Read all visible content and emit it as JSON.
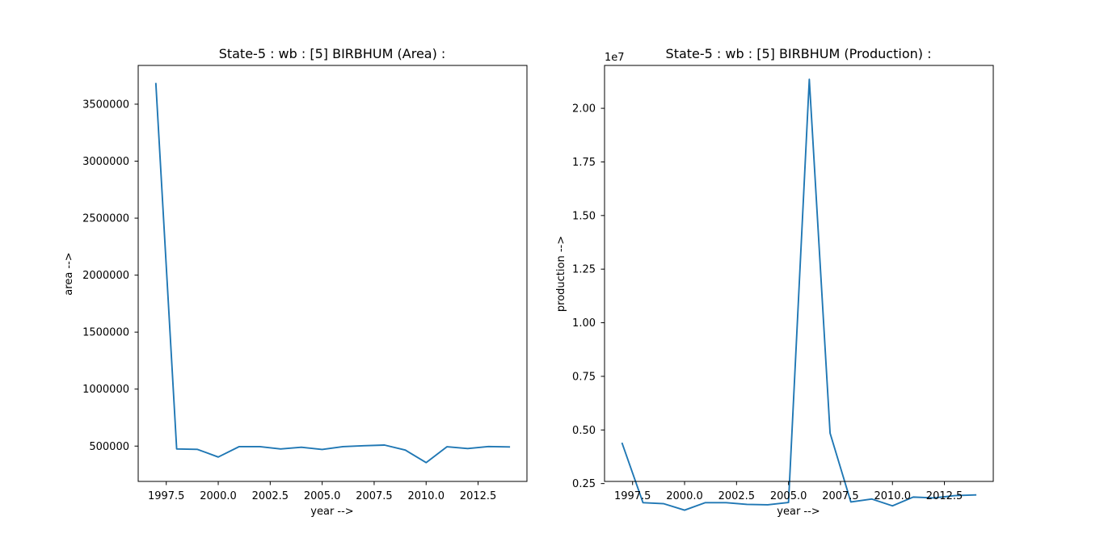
{
  "figure": {
    "background": "#ffffff",
    "line_color": "#1f77b4"
  },
  "chart_data": [
    {
      "type": "line",
      "title": "State-5 : wb : [5] BIRBHUM (Area) :",
      "xlabel": "year -->",
      "ylabel": "area -->",
      "offset_label": "",
      "xlim": [
        1996.15,
        2014.85
      ],
      "ylim": [
        190000,
        3840000
      ],
      "xticks": [
        1997.5,
        2000.0,
        2002.5,
        2005.0,
        2007.5,
        2010.0,
        2012.5
      ],
      "xtick_labels": [
        "1997.5",
        "2000.0",
        "2002.5",
        "2005.0",
        "2007.5",
        "2010.0",
        "2012.5"
      ],
      "yticks": [
        500000,
        1000000,
        1500000,
        2000000,
        2500000,
        3000000,
        3500000
      ],
      "ytick_labels": [
        "500000",
        "1000000",
        "1500000",
        "2000000",
        "2500000",
        "3000000",
        "3500000"
      ],
      "grid": false,
      "series": [
        {
          "x": [
            1997,
            1998,
            1999,
            2000,
            2001,
            2002,
            2003,
            2004,
            2005,
            2006,
            2007,
            2008,
            2009,
            2010,
            2011,
            2012,
            2013,
            2014
          ],
          "y": [
            3680000,
            475000,
            471000,
            404000,
            495000,
            495000,
            475000,
            490000,
            470000,
            495000,
            503000,
            509000,
            465000,
            355000,
            494000,
            478000,
            496000,
            493000
          ]
        }
      ]
    },
    {
      "type": "line",
      "title": "State-5 : wb : [5] BIRBHUM (Production) :",
      "xlabel": "year -->",
      "ylabel": "production -->",
      "offset_label": "1e7",
      "xlim": [
        1996.15,
        2014.85
      ],
      "ylim": [
        0.26,
        2.2
      ],
      "xticks": [
        1997.5,
        2000.0,
        2002.5,
        2005.0,
        2007.5,
        2010.0,
        2012.5
      ],
      "xtick_labels": [
        "1997.5",
        "2000.0",
        "2002.5",
        "2005.0",
        "2007.5",
        "2010.0",
        "2012.5"
      ],
      "yticks": [
        0.25,
        0.5,
        0.75,
        1.0,
        1.25,
        1.5,
        1.75,
        2.0
      ],
      "ytick_labels": [
        "0.25",
        "0.50",
        "0.75",
        "1.00",
        "1.25",
        "1.50",
        "1.75",
        "2.00"
      ],
      "grid": false,
      "series": [
        {
          "x": [
            1997,
            1998,
            1999,
            2000,
            2001,
            2002,
            2003,
            2004,
            2005,
            2006,
            2007,
            2008,
            2009,
            2010,
            2011,
            2012,
            2013,
            2014
          ],
          "y": [
            0.437,
            0.161,
            0.156,
            0.126,
            0.161,
            0.161,
            0.153,
            0.151,
            0.162,
            2.135,
            0.485,
            0.164,
            0.178,
            0.146,
            0.187,
            0.183,
            0.194,
            0.197
          ]
        }
      ]
    }
  ]
}
